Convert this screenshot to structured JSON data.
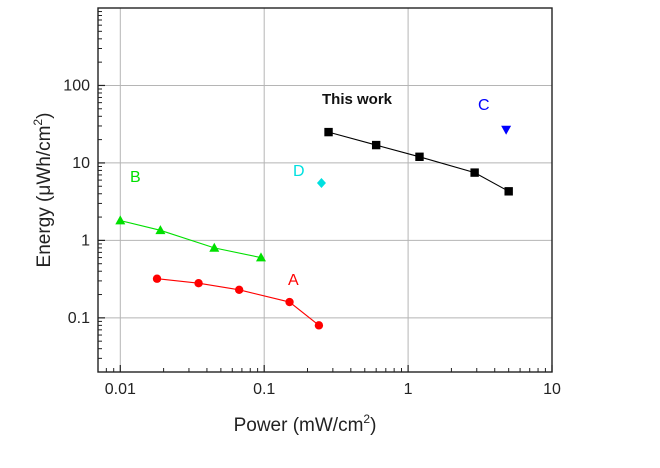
{
  "chart_data": {
    "type": "scatter",
    "xlabel": "Power (mW/cm",
    "xlabel_sup": "2",
    "xlabel_end": ")",
    "ylabel": "Energy (μWh/cm",
    "ylabel_sup": "2",
    "ylabel_end": ")",
    "xscale": "log",
    "yscale": "log",
    "xlim": [
      0.007,
      10
    ],
    "ylim": [
      0.02,
      1000
    ],
    "grid": true,
    "x_ticks": [
      0.01,
      0.1,
      1,
      10
    ],
    "x_tick_labels": [
      "0.01",
      "0.1",
      "1",
      "10"
    ],
    "y_ticks": [
      0.1,
      1,
      10,
      100
    ],
    "y_tick_labels": [
      "0.1",
      "1",
      "10",
      "100"
    ],
    "series": [
      {
        "name": "This work",
        "color": "#000000",
        "marker": "square",
        "line": true,
        "x": [
          0.28,
          0.6,
          1.2,
          2.9,
          5.0
        ],
        "y": [
          25,
          17,
          12,
          7.5,
          4.3
        ]
      },
      {
        "name": "A",
        "color": "#ff0000",
        "marker": "circle",
        "line": true,
        "x": [
          0.018,
          0.035,
          0.067,
          0.15,
          0.24
        ],
        "y": [
          0.32,
          0.28,
          0.23,
          0.16,
          0.08
        ]
      },
      {
        "name": "B",
        "color": "#00e000",
        "marker": "triangle-up",
        "line": true,
        "x": [
          0.01,
          0.019,
          0.045,
          0.095
        ],
        "y": [
          1.8,
          1.35,
          0.8,
          0.6
        ]
      },
      {
        "name": "C",
        "color": "#0000ff",
        "marker": "triangle-down",
        "line": false,
        "x": [
          4.8
        ],
        "y": [
          27
        ]
      },
      {
        "name": "D",
        "color": "#00e0e0",
        "marker": "diamond",
        "line": false,
        "x": [
          0.25
        ],
        "y": [
          5.5
        ]
      }
    ],
    "annotations": [
      {
        "text": "This work",
        "color": "#111111",
        "bold": true
      },
      {
        "text": "A",
        "color": "#ff0000"
      },
      {
        "text": "B",
        "color": "#00e000"
      },
      {
        "text": "C",
        "color": "#0000ff"
      },
      {
        "text": "D",
        "color": "#00e0e0"
      }
    ]
  }
}
